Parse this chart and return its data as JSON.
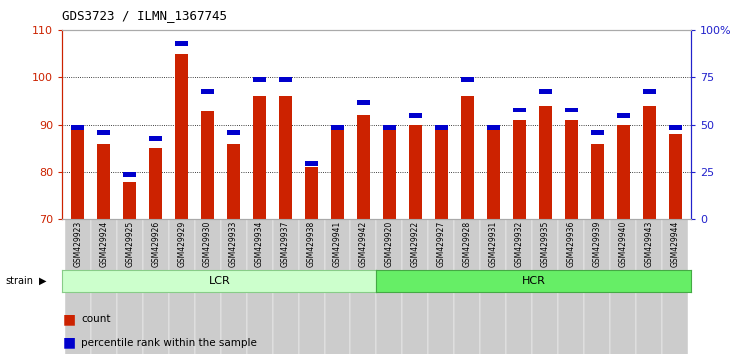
{
  "title": "GDS3723 / ILMN_1367745",
  "samples": [
    "GSM429923",
    "GSM429924",
    "GSM429925",
    "GSM429926",
    "GSM429929",
    "GSM429930",
    "GSM429933",
    "GSM429934",
    "GSM429937",
    "GSM429938",
    "GSM429941",
    "GSM429942",
    "GSM429920",
    "GSM429922",
    "GSM429927",
    "GSM429928",
    "GSM429931",
    "GSM429932",
    "GSM429935",
    "GSM429936",
    "GSM429939",
    "GSM429940",
    "GSM429943",
    "GSM429944"
  ],
  "count_values": [
    89,
    86,
    78,
    85,
    105,
    93,
    86,
    96,
    96,
    81,
    89,
    92,
    89,
    90,
    89,
    96,
    89,
    91,
    94,
    91,
    86,
    90,
    94,
    88
  ],
  "percentile_values": [
    50,
    47,
    25,
    44,
    94,
    69,
    47,
    75,
    75,
    31,
    50,
    63,
    50,
    56,
    50,
    75,
    50,
    59,
    69,
    59,
    47,
    56,
    69,
    50
  ],
  "groups": {
    "LCR": [
      0,
      12
    ],
    "HCR": [
      12,
      24
    ]
  },
  "ylim_left": [
    70,
    110
  ],
  "ylim_right": [
    0,
    100
  ],
  "bar_color": "#cc2200",
  "percentile_color": "#0000cc",
  "lcr_color": "#ccffcc",
  "hcr_color": "#66ee66",
  "axis_left_color": "#cc2200",
  "axis_right_color": "#2222cc",
  "bg_color": "#ffffff",
  "tick_bg_color": "#cccccc",
  "bar_width": 0.5,
  "yticks_left": [
    70,
    80,
    90,
    100,
    110
  ],
  "yticks_right": [
    0,
    25,
    50,
    75,
    100
  ]
}
